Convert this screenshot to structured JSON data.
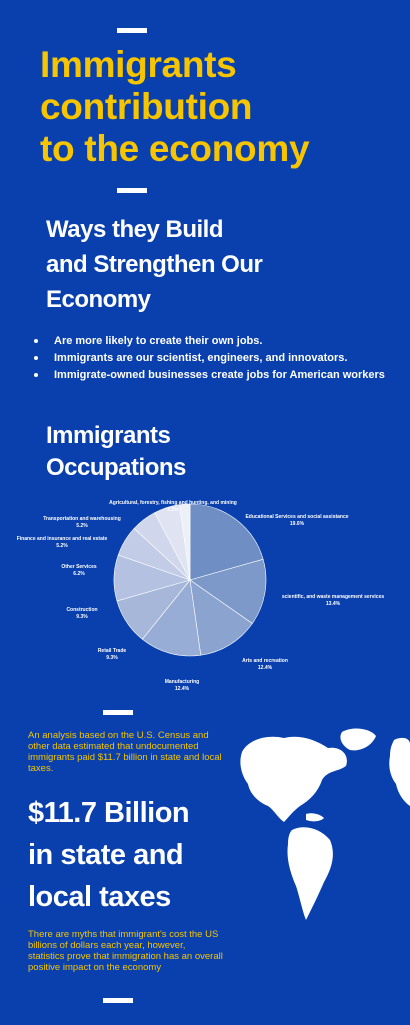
{
  "header": {
    "title_lines": [
      "Immigrants",
      "contribution",
      "to the economy"
    ]
  },
  "ways": {
    "heading_lines": [
      "Ways they Build",
      "and Strengthen Our",
      "Economy"
    ],
    "bullets": [
      "Are more likely to create their own jobs.",
      "Immigrants are our scientist, engineers, and innovators.",
      "Immigrate-owned businesses create jobs for American workers"
    ]
  },
  "occupations": {
    "heading_lines": [
      "Immigrants",
      "Occupations"
    ]
  },
  "chart_data": {
    "type": "pie",
    "title": "",
    "slices": [
      {
        "label": "Educational Services and social assistance",
        "value": 19.6,
        "value_label": "19.6%"
      },
      {
        "label": "scientific, and waste management services",
        "value": 13.4,
        "value_label": "13.4%"
      },
      {
        "label": "Arts and recreation",
        "value": 12.4,
        "value_label": "12.4%"
      },
      {
        "label": "Manufacturing",
        "value": 12.4,
        "value_label": "12.4%"
      },
      {
        "label": "Retail Trade",
        "value": 9.3,
        "value_label": "9.3%"
      },
      {
        "label": "Construction",
        "value": 9.3,
        "value_label": "9.3%"
      },
      {
        "label": "Other Services",
        "value": 6.2,
        "value_label": "6.2%"
      },
      {
        "label": "Finance and insurance and real estate",
        "value": 5.2,
        "value_label": "5.2%"
      },
      {
        "label": "Transportation and warehousing",
        "value": 5.2,
        "value_label": "5.2%"
      },
      {
        "label": "Agricultural, forestry, fishing and hunting, and mining",
        "value": 2.1,
        "value_label": "2.1%"
      }
    ],
    "colors": [
      "#6f8fc4",
      "#7d99c9",
      "#8aa3cf",
      "#98add5",
      "#a6b7da",
      "#b4c1e0",
      "#c2cce6",
      "#d0d7ec",
      "#dfe3f2",
      "#eef0f8"
    ]
  },
  "taxes": {
    "analysis_text": "An analysis based on the U.S. Census and other data estimated that undocumented immigrants paid $11.7 billion in state and local taxes.",
    "stat_lines": [
      "$11.7 Billion",
      "in state and",
      "local taxes"
    ],
    "myths_text": "There are myths that immigrant's cost the US billions of dollars each year, however, statistics prove that immigration has an overall positive impact on the economy"
  },
  "colors": {
    "background": "#0a40ad",
    "accent": "#f6c500",
    "text": "#ffffff"
  },
  "icons": {
    "map": "world-map-icon"
  }
}
